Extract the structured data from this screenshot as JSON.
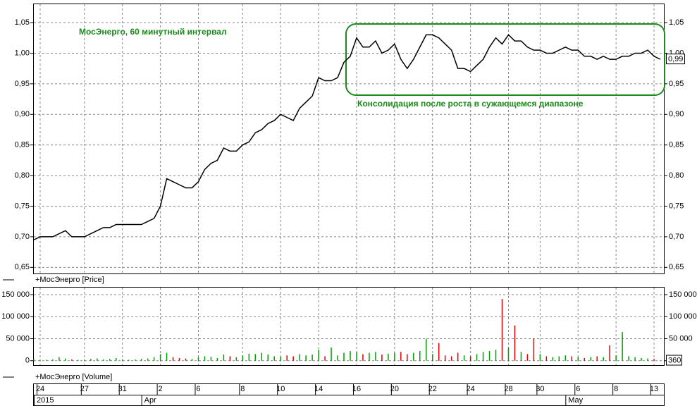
{
  "chart_data": {
    "type": "ohlc-volume",
    "title": "МосЭнерго, 60 минутный интервал",
    "annotation": "Консолидация после роста в сужающемся диапазоне",
    "price_legend": "+МосЭнерго [Price]",
    "volume_legend": "+МосЭнерго [Volume]",
    "xlim": [
      0,
      99
    ],
    "xticks": [
      {
        "value": 1,
        "label": "24"
      },
      {
        "value": 8,
        "label": "27"
      },
      {
        "value": 14,
        "label": "31"
      },
      {
        "value": 20,
        "label": "2"
      },
      {
        "value": 26,
        "label": "6"
      },
      {
        "value": 33,
        "label": "8"
      },
      {
        "value": 39,
        "label": "10"
      },
      {
        "value": 45,
        "label": "14"
      },
      {
        "value": 51,
        "label": "16"
      },
      {
        "value": 57,
        "label": "20"
      },
      {
        "value": 63,
        "label": "22"
      },
      {
        "value": 69,
        "label": "24"
      },
      {
        "value": 75,
        "label": "28"
      },
      {
        "value": 80,
        "label": "30"
      },
      {
        "value": 86,
        "label": "6"
      },
      {
        "value": 92,
        "label": "8"
      },
      {
        "value": 98,
        "label": "13"
      }
    ],
    "period_ticks": [
      {
        "value": 0,
        "label": "2015"
      },
      {
        "value": 17,
        "label": "Apr"
      },
      {
        "value": 84,
        "label": "May"
      }
    ],
    "price": {
      "color": "#000000",
      "ylim": [
        0.64,
        1.08
      ],
      "yticks": [
        {
          "value": 0.65,
          "label": "0,65"
        },
        {
          "value": 0.7,
          "label": "0,70"
        },
        {
          "value": 0.75,
          "label": "0,75"
        },
        {
          "value": 0.8,
          "label": "0,80"
        },
        {
          "value": 0.85,
          "label": "0,85"
        },
        {
          "value": 0.9,
          "label": "0,90"
        },
        {
          "value": 0.95,
          "label": "0,95"
        },
        {
          "value": 1.0,
          "label": "1,00"
        },
        {
          "value": 1.05,
          "label": "1,05"
        }
      ],
      "values": [
        0.695,
        0.7,
        0.7,
        0.7,
        0.705,
        0.71,
        0.7,
        0.7,
        0.7,
        0.705,
        0.71,
        0.715,
        0.715,
        0.72,
        0.72,
        0.72,
        0.72,
        0.72,
        0.725,
        0.73,
        0.75,
        0.795,
        0.79,
        0.785,
        0.78,
        0.78,
        0.79,
        0.81,
        0.82,
        0.825,
        0.845,
        0.84,
        0.84,
        0.85,
        0.855,
        0.87,
        0.875,
        0.885,
        0.89,
        0.9,
        0.895,
        0.89,
        0.91,
        0.92,
        0.93,
        0.96,
        0.955,
        0.955,
        0.96,
        0.985,
        0.995,
        1.025,
        1.01,
        1.01,
        1.02,
        1.0,
        1.005,
        1.015,
        0.99,
        0.975,
        0.99,
        1.01,
        1.03,
        1.03,
        1.025,
        1.015,
        1.005,
        0.975,
        0.975,
        0.97,
        0.98,
        0.99,
        1.01,
        1.025,
        1.015,
        1.03,
        1.02,
        1.02,
        1.01,
        1.005,
        1.005,
        1.0,
        1.0,
        1.005,
        1.01,
        1.005,
        1.005,
        0.995,
        0.995,
        0.99,
        0.995,
        0.99,
        0.99,
        0.995,
        0.995,
        1.0,
        1.0,
        1.005,
        0.995,
        0.99
      ],
      "last_label": {
        "value": 0.99,
        "label": "0,99"
      }
    },
    "volume": {
      "up_color": "#00a000",
      "down_color": "#e00000",
      "ylim": [
        -10000,
        166000
      ],
      "yticks": [
        0,
        {
          "value": 50000,
          "label": "50 000"
        },
        {
          "value": 100000,
          "label": "100 000"
        },
        {
          "value": 150000,
          "label": "150 000"
        }
      ],
      "values": [
        3000,
        2000,
        2000,
        3000,
        8000,
        5000,
        3000,
        2000,
        2000,
        4000,
        5000,
        3000,
        4000,
        6000,
        3000,
        2000,
        3000,
        4000,
        5000,
        8000,
        15000,
        18000,
        8000,
        6000,
        5000,
        4000,
        8000,
        10000,
        9000,
        6000,
        14000,
        10000,
        8000,
        12000,
        16000,
        15000,
        18000,
        14000,
        10000,
        9000,
        12000,
        10000,
        15000,
        12000,
        14000,
        25000,
        10000,
        30000,
        12000,
        18000,
        22000,
        20000,
        15000,
        18000,
        20000,
        14000,
        16000,
        18000,
        20000,
        15000,
        18000,
        22000,
        50000,
        15000,
        40000,
        12000,
        10000,
        18000,
        12000,
        10000,
        15000,
        20000,
        22000,
        25000,
        140000,
        30000,
        80000,
        20000,
        15000,
        50000,
        15000,
        10000,
        8000,
        10000,
        12000,
        10000,
        8000,
        6000,
        8000,
        10000,
        8000,
        35000,
        12000,
        65000,
        10000,
        8000,
        6000,
        5000,
        4000,
        360
      ]
    }
  }
}
